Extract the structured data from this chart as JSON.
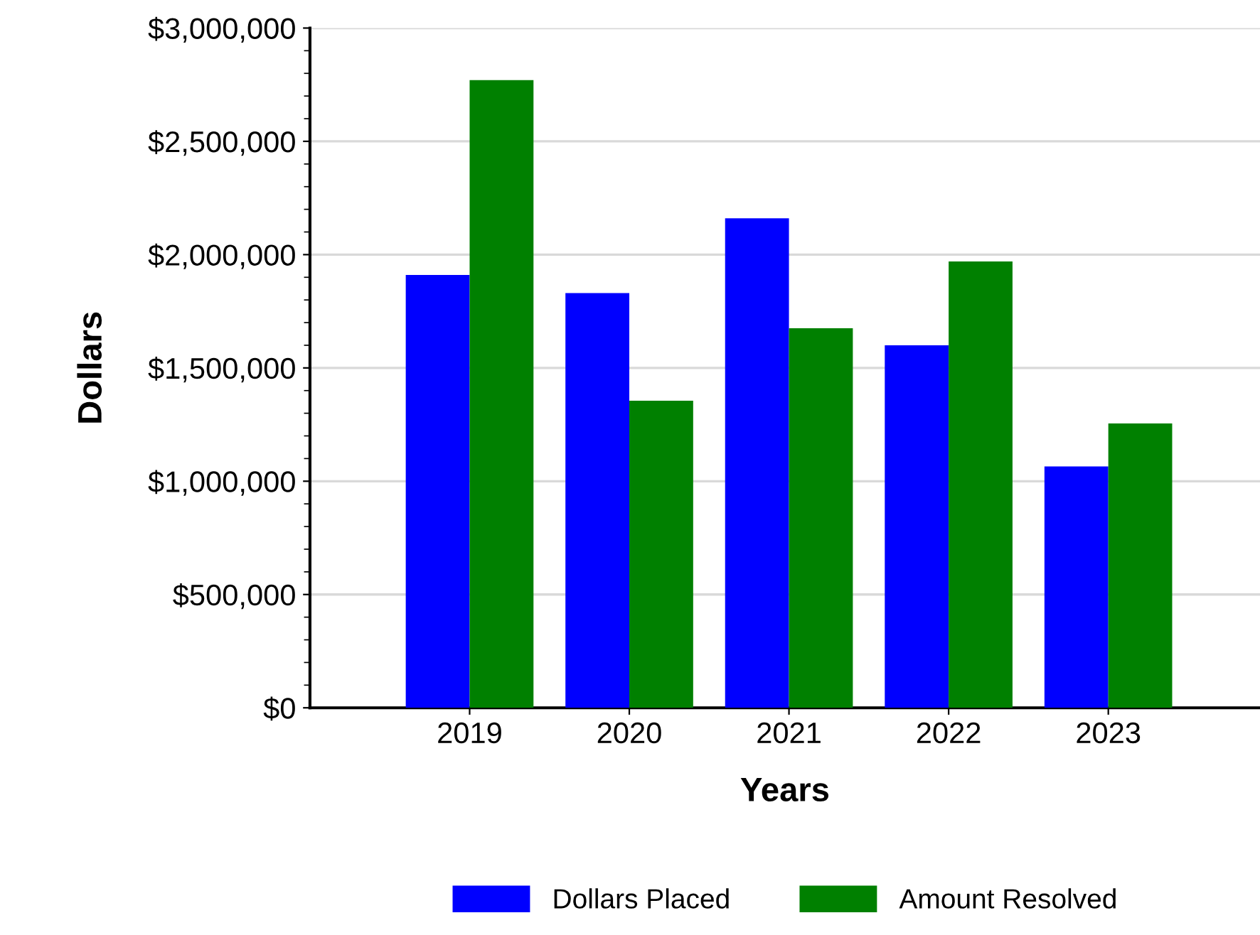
{
  "chart_data": {
    "type": "bar",
    "xlabel": "Years",
    "ylabel": "Dollars",
    "categories": [
      "2019",
      "2020",
      "2021",
      "2022",
      "2023"
    ],
    "series": [
      {
        "name": "Dollars Placed",
        "color": "#0000ff",
        "values": [
          1910000,
          1830000,
          2160000,
          1600000,
          1065000
        ]
      },
      {
        "name": "Amount Resolved",
        "color": "#008000",
        "values": [
          2770000,
          1355000,
          1675000,
          1970000,
          1255000
        ]
      }
    ],
    "ylim": [
      0,
      3000000
    ],
    "yticks": [
      {
        "value": 0,
        "label": "$0"
      },
      {
        "value": 500000,
        "label": "$500,000"
      },
      {
        "value": 1000000,
        "label": "$1,000,000"
      },
      {
        "value": 1500000,
        "label": "$1,500,000"
      },
      {
        "value": 2000000,
        "label": "$2,000,000"
      },
      {
        "value": 2500000,
        "label": "$2,500,000"
      },
      {
        "value": 3000000,
        "label": "$3,000,000"
      }
    ],
    "grid": "y",
    "legend": "bottom"
  }
}
